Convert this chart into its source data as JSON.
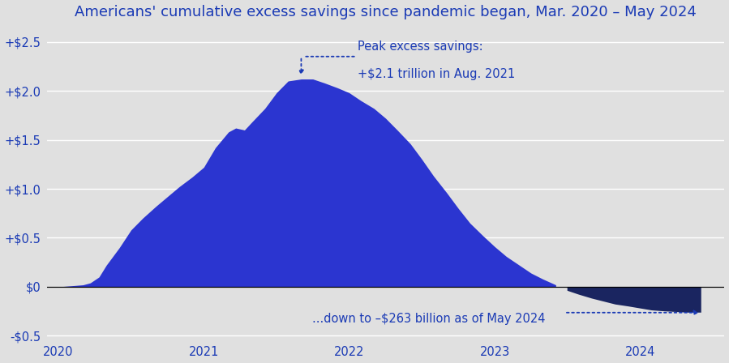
{
  "title": "Americans' cumulative excess savings since pandemic began, Mar. 2020 – May 2024",
  "title_color": "#1a3ab5",
  "title_fontsize": 13.0,
  "background_color": "#e0e0e0",
  "fill_color_positive": "#2b35d0",
  "fill_color_negative": "#1a2560",
  "annotation_color": "#1a3ab5",
  "ytick_labels": [
    "-$0.5",
    "$0",
    "+$0.5",
    "+$1.0",
    "+$1.5",
    "+$2.0",
    "+$2.5"
  ],
  "ytick_values": [
    -0.5,
    0.0,
    0.5,
    1.0,
    1.5,
    2.0,
    2.5
  ],
  "ylim": [
    -0.55,
    2.65
  ],
  "xlim_start": 2019.92,
  "xlim_end": 2024.58,
  "xtick_labels": [
    "2020",
    "2021",
    "2022",
    "2023",
    "2024"
  ],
  "xtick_values": [
    2020,
    2021,
    2022,
    2023,
    2024
  ],
  "peak_annotation_line1": "Peak excess savings:",
  "peak_annotation_line2": "+$2.1 trillion in Aug. 2021",
  "bottom_annotation": "...down to –$263 billion as of May 2024",
  "x_data": [
    2020.0,
    2020.17,
    2020.22,
    2020.28,
    2020.33,
    2020.42,
    2020.5,
    2020.58,
    2020.67,
    2020.75,
    2020.83,
    2020.92,
    2021.0,
    2021.08,
    2021.17,
    2021.22,
    2021.28,
    2021.33,
    2021.42,
    2021.5,
    2021.58,
    2021.67,
    2021.75,
    2021.83,
    2021.92,
    2022.0,
    2022.08,
    2022.17,
    2022.25,
    2022.33,
    2022.42,
    2022.5,
    2022.58,
    2022.67,
    2022.75,
    2022.83,
    2022.92,
    2023.0,
    2023.08,
    2023.17,
    2023.25,
    2023.33,
    2023.42,
    2023.5,
    2023.58,
    2023.67,
    2023.75,
    2023.83,
    2023.92,
    2024.0,
    2024.08,
    2024.17,
    2024.33,
    2024.42
  ],
  "y_data": [
    0.0,
    0.02,
    0.04,
    0.1,
    0.22,
    0.4,
    0.58,
    0.7,
    0.82,
    0.92,
    1.02,
    1.12,
    1.22,
    1.42,
    1.58,
    1.62,
    1.6,
    1.68,
    1.82,
    1.98,
    2.1,
    2.12,
    2.12,
    2.08,
    2.03,
    1.98,
    1.9,
    1.82,
    1.72,
    1.6,
    1.46,
    1.3,
    1.13,
    0.96,
    0.8,
    0.65,
    0.52,
    0.41,
    0.31,
    0.22,
    0.14,
    0.08,
    0.02,
    -0.04,
    -0.08,
    -0.12,
    -0.15,
    -0.18,
    -0.2,
    -0.22,
    -0.24,
    -0.25,
    -0.263,
    -0.263
  ]
}
